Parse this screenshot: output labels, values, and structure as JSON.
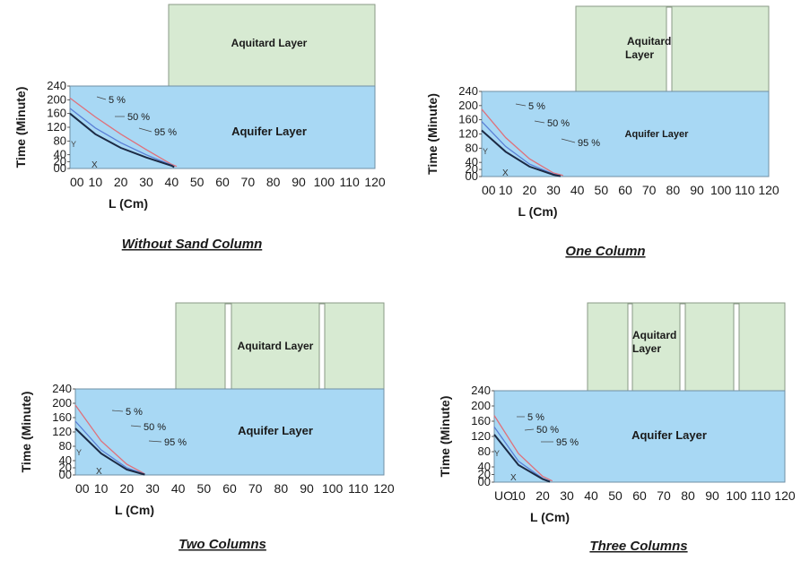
{
  "chart_data": [
    {
      "type": "line",
      "caption": "Without Sand Column",
      "xlabel": "L (Cm)",
      "ylabel": "Time (Minute)",
      "xlim": [
        0,
        120
      ],
      "ylim": [
        0,
        240
      ],
      "x_ticks": [
        "00",
        "10",
        "20",
        "30",
        "40",
        "50",
        "60",
        "70",
        "80",
        "90",
        "100",
        "110",
        "120"
      ],
      "y_ticks": [
        "00",
        "20",
        "40",
        "80",
        "120",
        "160",
        "200",
        "240"
      ],
      "layers": {
        "aquitard": "Aquitard Layer",
        "aquifer": "Aquifer Layer"
      },
      "markers": {
        "x": "X",
        "y": "Y"
      },
      "series": [
        {
          "name": "5 %",
          "x": [
            0,
            10,
            20,
            30,
            40,
            42
          ],
          "y": [
            205,
            150,
            100,
            55,
            12,
            6
          ]
        },
        {
          "name": "50 %",
          "x": [
            0,
            10,
            20,
            30,
            40,
            41
          ],
          "y": [
            175,
            118,
            75,
            40,
            10,
            5
          ]
        },
        {
          "name": "95 %",
          "x": [
            0,
            10,
            20,
            30,
            40,
            41
          ],
          "y": [
            160,
            100,
            60,
            32,
            8,
            4
          ]
        }
      ]
    },
    {
      "type": "line",
      "caption": "One Column",
      "xlabel": "L (Cm)",
      "ylabel": "Time (Minute)",
      "xlim": [
        0,
        120
      ],
      "ylim": [
        0,
        240
      ],
      "x_ticks": [
        "00",
        "10",
        "20",
        "30",
        "40",
        "50",
        "60",
        "70",
        "80",
        "90",
        "100",
        "110",
        "120"
      ],
      "y_ticks": [
        "00",
        "20",
        "40",
        "80",
        "120",
        "160",
        "200",
        "240"
      ],
      "layers": {
        "aquitard": "Aquitard Layer",
        "aquifer": "Aquifer Layer"
      },
      "markers": {
        "x": "X",
        "y": "Y"
      },
      "series": [
        {
          "name": "5 %",
          "x": [
            0,
            10,
            20,
            30,
            34
          ],
          "y": [
            190,
            110,
            50,
            10,
            3
          ]
        },
        {
          "name": "50 %",
          "x": [
            0,
            10,
            20,
            30,
            33
          ],
          "y": [
            155,
            85,
            35,
            7,
            2
          ]
        },
        {
          "name": "95 %",
          "x": [
            0,
            10,
            20,
            30,
            33
          ],
          "y": [
            130,
            70,
            28,
            5,
            1
          ]
        }
      ]
    },
    {
      "type": "line",
      "caption": "Two Columns",
      "xlabel": "L (Cm)",
      "ylabel": "Time (Minute)",
      "xlim": [
        0,
        120
      ],
      "ylim": [
        0,
        240
      ],
      "x_ticks": [
        "00",
        "10",
        "20",
        "30",
        "40",
        "50",
        "60",
        "70",
        "80",
        "90",
        "100",
        "110",
        "120"
      ],
      "y_ticks": [
        "00",
        "20",
        "40",
        "80",
        "120",
        "160",
        "200",
        "240"
      ],
      "layers": {
        "aquitard": "Aquitard Layer",
        "aquifer": "Aquifer Layer"
      },
      "markers": {
        "x": "X",
        "y": "Y"
      },
      "series": [
        {
          "name": "5 %",
          "x": [
            0,
            10,
            20,
            27
          ],
          "y": [
            195,
            95,
            30,
            3
          ]
        },
        {
          "name": "50 %",
          "x": [
            0,
            10,
            20,
            27
          ],
          "y": [
            150,
            70,
            20,
            2
          ]
        },
        {
          "name": "95 %",
          "x": [
            0,
            10,
            20,
            27
          ],
          "y": [
            130,
            60,
            15,
            1
          ]
        }
      ]
    },
    {
      "type": "line",
      "caption": "Three Columns",
      "xlabel": "L (Cm)",
      "ylabel": "Time (Minute)",
      "xlim": [
        0,
        120
      ],
      "ylim": [
        0,
        240
      ],
      "x_ticks": [
        "UO",
        "10",
        "20",
        "30",
        "40",
        "50",
        "60",
        "70",
        "80",
        "90",
        "100",
        "110",
        "120"
      ],
      "y_ticks": [
        "00",
        "20",
        "40",
        "80",
        "120",
        "160",
        "200",
        "240"
      ],
      "layers": {
        "aquitard": "Aquitard Layer",
        "aquifer": "Aquifer Layer"
      },
      "markers": {
        "x": "X",
        "y": "Y"
      },
      "series": [
        {
          "name": "5 %",
          "x": [
            0,
            10,
            20,
            24
          ],
          "y": [
            175,
            75,
            15,
            3
          ]
        },
        {
          "name": "50 %",
          "x": [
            0,
            10,
            20,
            23
          ],
          "y": [
            145,
            55,
            10,
            2
          ]
        },
        {
          "name": "95 %",
          "x": [
            0,
            10,
            20,
            23
          ],
          "y": [
            125,
            45,
            8,
            1
          ]
        }
      ]
    }
  ]
}
